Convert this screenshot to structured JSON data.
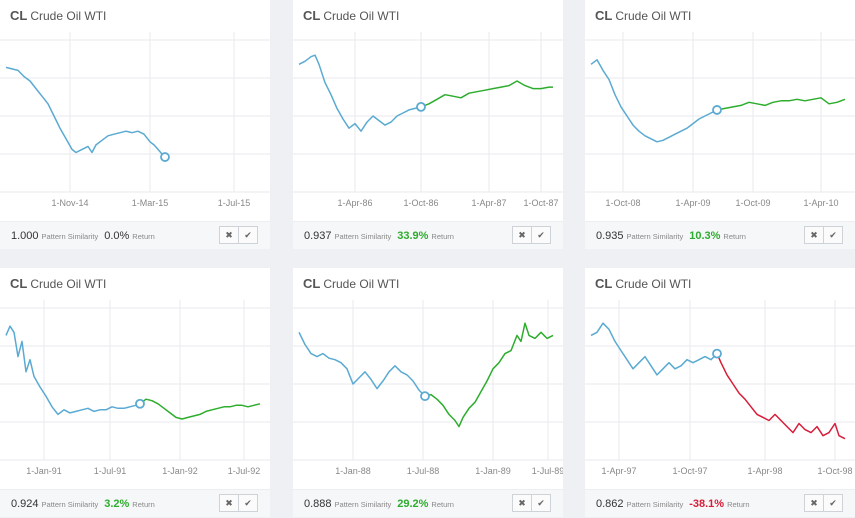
{
  "colors": {
    "history": "#5aaad2",
    "gain": "#2dad2d",
    "loss": "#d81d3a",
    "grid": "#e9eaec",
    "return_positive": "#2dad2d",
    "return_negative": "#d81d3a",
    "return_neutral": "#333333"
  },
  "buttons": {
    "reject_icon": "✖",
    "accept_icon": "✔"
  },
  "footer_labels": {
    "similarity": "Pattern Similarity",
    "return": "Return"
  },
  "chart_data": [
    {
      "type": "line",
      "symbol": "CL",
      "name": "Crude Oil WTI",
      "x_ticks": [
        "1-Nov-14",
        "1-Mar-15",
        "1-Jul-15"
      ],
      "ylim": [
        0,
        100
      ],
      "history": [
        [
          0,
          82
        ],
        [
          6,
          81
        ],
        [
          12,
          80
        ],
        [
          18,
          76
        ],
        [
          24,
          73
        ],
        [
          30,
          68
        ],
        [
          36,
          63
        ],
        [
          42,
          58
        ],
        [
          48,
          50
        ],
        [
          54,
          42
        ],
        [
          60,
          35
        ],
        [
          66,
          28
        ],
        [
          70,
          26
        ],
        [
          76,
          28
        ],
        [
          82,
          30
        ],
        [
          86,
          26
        ],
        [
          90,
          31
        ],
        [
          96,
          34
        ],
        [
          102,
          37
        ],
        [
          108,
          38
        ],
        [
          114,
          39
        ],
        [
          120,
          40
        ],
        [
          126,
          39
        ],
        [
          132,
          40
        ],
        [
          138,
          38
        ],
        [
          144,
          33
        ],
        [
          148,
          31
        ],
        [
          152,
          28
        ],
        [
          156,
          25
        ],
        [
          159,
          23
        ]
      ],
      "projection": [],
      "similarity": "1.000",
      "return": "0.0%",
      "return_sign": "neutral"
    },
    {
      "type": "line",
      "symbol": "CL",
      "name": "Crude Oil WTI",
      "x_ticks": [
        "1-Apr-86",
        "1-Oct-86",
        "1-Apr-87",
        "1-Oct-87"
      ],
      "ylim": [
        0,
        100
      ],
      "history": [
        [
          0,
          84
        ],
        [
          6,
          86
        ],
        [
          12,
          89
        ],
        [
          16,
          90
        ],
        [
          20,
          84
        ],
        [
          26,
          72
        ],
        [
          32,
          64
        ],
        [
          38,
          55
        ],
        [
          44,
          48
        ],
        [
          50,
          42
        ],
        [
          56,
          45
        ],
        [
          62,
          40
        ],
        [
          68,
          46
        ],
        [
          74,
          50
        ],
        [
          80,
          47
        ],
        [
          86,
          44
        ],
        [
          92,
          46
        ],
        [
          98,
          50
        ],
        [
          104,
          52
        ],
        [
          110,
          54
        ],
        [
          116,
          55
        ],
        [
          122,
          56
        ]
      ],
      "projection": [
        [
          122,
          56
        ],
        [
          130,
          58
        ],
        [
          138,
          61
        ],
        [
          146,
          64
        ],
        [
          154,
          63
        ],
        [
          162,
          62
        ],
        [
          170,
          65
        ],
        [
          178,
          66
        ],
        [
          186,
          67
        ],
        [
          194,
          68
        ],
        [
          202,
          69
        ],
        [
          210,
          70
        ],
        [
          218,
          73
        ],
        [
          226,
          70
        ],
        [
          234,
          68
        ],
        [
          242,
          68
        ],
        [
          250,
          69
        ],
        [
          254,
          69
        ]
      ],
      "similarity": "0.937",
      "return": "33.9%",
      "return_sign": "positive"
    },
    {
      "type": "line",
      "symbol": "CL",
      "name": "Crude Oil WTI",
      "x_ticks": [
        "1-Oct-08",
        "1-Apr-09",
        "1-Oct-09",
        "1-Apr-10"
      ],
      "ylim": [
        0,
        100
      ],
      "history": [
        [
          0,
          84
        ],
        [
          6,
          87
        ],
        [
          12,
          80
        ],
        [
          18,
          74
        ],
        [
          24,
          64
        ],
        [
          30,
          56
        ],
        [
          36,
          50
        ],
        [
          42,
          44
        ],
        [
          48,
          40
        ],
        [
          54,
          37
        ],
        [
          60,
          35
        ],
        [
          66,
          33
        ],
        [
          72,
          34
        ],
        [
          78,
          36
        ],
        [
          84,
          38
        ],
        [
          90,
          40
        ],
        [
          96,
          42
        ],
        [
          102,
          45
        ],
        [
          108,
          48
        ],
        [
          114,
          50
        ],
        [
          120,
          52
        ],
        [
          126,
          54
        ]
      ],
      "projection": [
        [
          126,
          54
        ],
        [
          134,
          55
        ],
        [
          142,
          56
        ],
        [
          150,
          57
        ],
        [
          158,
          59
        ],
        [
          166,
          58
        ],
        [
          174,
          57
        ],
        [
          182,
          59
        ],
        [
          190,
          60
        ],
        [
          198,
          60
        ],
        [
          206,
          61
        ],
        [
          214,
          60
        ],
        [
          222,
          61
        ],
        [
          230,
          62
        ],
        [
          238,
          58
        ],
        [
          246,
          59
        ],
        [
          254,
          61
        ]
      ],
      "similarity": "0.935",
      "return": "10.3%",
      "return_sign": "positive"
    },
    {
      "type": "line",
      "symbol": "CL",
      "name": "Crude Oil WTI",
      "x_ticks": [
        "1-Jan-91",
        "1-Jul-91",
        "1-Jan-92",
        "1-Jul-92"
      ],
      "ylim": [
        0,
        100
      ],
      "history": [
        [
          0,
          82
        ],
        [
          4,
          88
        ],
        [
          8,
          84
        ],
        [
          12,
          68
        ],
        [
          16,
          78
        ],
        [
          20,
          58
        ],
        [
          24,
          66
        ],
        [
          28,
          55
        ],
        [
          34,
          48
        ],
        [
          40,
          42
        ],
        [
          46,
          35
        ],
        [
          52,
          30
        ],
        [
          58,
          33
        ],
        [
          64,
          31
        ],
        [
          70,
          32
        ],
        [
          76,
          33
        ],
        [
          82,
          34
        ],
        [
          88,
          32
        ],
        [
          94,
          33
        ],
        [
          100,
          33
        ],
        [
          106,
          35
        ],
        [
          112,
          34
        ],
        [
          118,
          34
        ],
        [
          124,
          35
        ],
        [
          130,
          36
        ],
        [
          134,
          37
        ]
      ],
      "projection": [
        [
          134,
          37
        ],
        [
          140,
          40
        ],
        [
          146,
          39
        ],
        [
          152,
          37
        ],
        [
          158,
          34
        ],
        [
          164,
          31
        ],
        [
          170,
          28
        ],
        [
          176,
          27
        ],
        [
          182,
          28
        ],
        [
          188,
          29
        ],
        [
          194,
          30
        ],
        [
          200,
          32
        ],
        [
          206,
          33
        ],
        [
          212,
          34
        ],
        [
          218,
          35
        ],
        [
          224,
          35
        ],
        [
          230,
          36
        ],
        [
          236,
          36
        ],
        [
          242,
          35
        ],
        [
          248,
          36
        ],
        [
          254,
          37
        ]
      ],
      "similarity": "0.924",
      "return": "3.2%",
      "return_sign": "positive"
    },
    {
      "type": "line",
      "symbol": "CL",
      "name": "Crude Oil WTI",
      "x_ticks": [
        "1-Jan-88",
        "1-Jul-88",
        "1-Jan-89",
        "1-Jul-89"
      ],
      "ylim": [
        0,
        100
      ],
      "history": [
        [
          0,
          84
        ],
        [
          6,
          76
        ],
        [
          12,
          70
        ],
        [
          18,
          68
        ],
        [
          24,
          70
        ],
        [
          30,
          67
        ],
        [
          36,
          66
        ],
        [
          42,
          64
        ],
        [
          48,
          60
        ],
        [
          54,
          50
        ],
        [
          60,
          54
        ],
        [
          66,
          58
        ],
        [
          72,
          53
        ],
        [
          78,
          47
        ],
        [
          84,
          52
        ],
        [
          90,
          58
        ],
        [
          96,
          62
        ],
        [
          102,
          58
        ],
        [
          108,
          56
        ],
        [
          114,
          52
        ],
        [
          120,
          46
        ],
        [
          126,
          42
        ]
      ],
      "projection": [
        [
          126,
          42
        ],
        [
          132,
          43
        ],
        [
          138,
          40
        ],
        [
          144,
          36
        ],
        [
          150,
          30
        ],
        [
          156,
          26
        ],
        [
          160,
          22
        ],
        [
          164,
          28
        ],
        [
          170,
          34
        ],
        [
          176,
          38
        ],
        [
          182,
          45
        ],
        [
          188,
          52
        ],
        [
          194,
          60
        ],
        [
          200,
          64
        ],
        [
          206,
          70
        ],
        [
          212,
          72
        ],
        [
          218,
          82
        ],
        [
          222,
          78
        ],
        [
          226,
          90
        ],
        [
          230,
          82
        ],
        [
          236,
          80
        ],
        [
          242,
          84
        ],
        [
          248,
          80
        ],
        [
          254,
          82
        ]
      ],
      "similarity": "0.888",
      "return": "29.2%",
      "return_sign": "positive"
    },
    {
      "type": "line",
      "symbol": "CL",
      "name": "Crude Oil WTI",
      "x_ticks": [
        "1-Apr-97",
        "1-Oct-97",
        "1-Apr-98",
        "1-Oct-98"
      ],
      "ylim": [
        0,
        100
      ],
      "history": [
        [
          0,
          82
        ],
        [
          6,
          84
        ],
        [
          12,
          90
        ],
        [
          18,
          86
        ],
        [
          24,
          78
        ],
        [
          30,
          72
        ],
        [
          36,
          66
        ],
        [
          42,
          60
        ],
        [
          48,
          64
        ],
        [
          54,
          68
        ],
        [
          60,
          62
        ],
        [
          66,
          56
        ],
        [
          72,
          60
        ],
        [
          78,
          64
        ],
        [
          84,
          60
        ],
        [
          90,
          62
        ],
        [
          96,
          66
        ],
        [
          102,
          64
        ],
        [
          108,
          66
        ],
        [
          114,
          68
        ],
        [
          120,
          66
        ],
        [
          126,
          70
        ]
      ],
      "projection": [
        [
          126,
          70
        ],
        [
          130,
          64
        ],
        [
          136,
          56
        ],
        [
          142,
          50
        ],
        [
          148,
          44
        ],
        [
          154,
          40
        ],
        [
          160,
          35
        ],
        [
          166,
          30
        ],
        [
          172,
          28
        ],
        [
          178,
          26
        ],
        [
          184,
          30
        ],
        [
          190,
          26
        ],
        [
          196,
          22
        ],
        [
          202,
          18
        ],
        [
          208,
          24
        ],
        [
          214,
          20
        ],
        [
          220,
          18
        ],
        [
          226,
          22
        ],
        [
          232,
          16
        ],
        [
          238,
          18
        ],
        [
          244,
          24
        ],
        [
          248,
          16
        ],
        [
          254,
          14
        ]
      ],
      "similarity": "0.862",
      "return": "-38.1%",
      "return_sign": "negative"
    }
  ]
}
